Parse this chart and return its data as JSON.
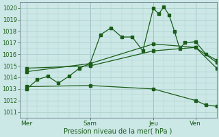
{
  "bg_color": "#cce8e6",
  "grid_color": "#aacfcc",
  "line_color": "#1a5c1a",
  "xlabel": "Pression niveau de la mer( hPa )",
  "ylim": [
    1010.5,
    1020.5
  ],
  "yticks": [
    1011,
    1012,
    1013,
    1014,
    1015,
    1016,
    1017,
    1018,
    1019,
    1020
  ],
  "x_tick_labels": [
    "Mer",
    "Sam",
    "Jeu",
    "Ven"
  ],
  "x_tick_positions": [
    0,
    36,
    72,
    96
  ],
  "x_vlines": [
    0,
    36,
    72,
    96
  ],
  "xlim": [
    -4,
    108
  ],
  "series1_x": [
    0,
    6,
    12,
    18,
    24,
    30,
    36,
    42,
    48,
    54,
    60,
    66,
    72,
    75,
    78,
    81,
    84,
    87,
    90,
    96,
    102,
    108
  ],
  "series1_y": [
    1013.0,
    1013.8,
    1014.1,
    1013.5,
    1014.1,
    1014.8,
    1015.2,
    1017.7,
    1018.3,
    1017.5,
    1017.5,
    1016.3,
    1020.0,
    1019.5,
    1020.1,
    1019.4,
    1018.0,
    1016.5,
    1017.0,
    1017.1,
    1016.0,
    1015.5
  ],
  "series2_x": [
    0,
    36,
    72,
    96,
    108
  ],
  "series2_y": [
    1014.5,
    1015.2,
    1016.9,
    1016.6,
    1014.8
  ],
  "series3_x": [
    0,
    36,
    72,
    96,
    108
  ],
  "series3_y": [
    1014.8,
    1015.0,
    1016.3,
    1016.6,
    1015.3
  ],
  "series4_x": [
    0,
    36,
    72,
    96,
    102,
    108
  ],
  "series4_y": [
    1013.2,
    1013.3,
    1013.0,
    1012.0,
    1011.6,
    1011.5
  ],
  "marker_size": 2.5,
  "line_width": 0.9
}
